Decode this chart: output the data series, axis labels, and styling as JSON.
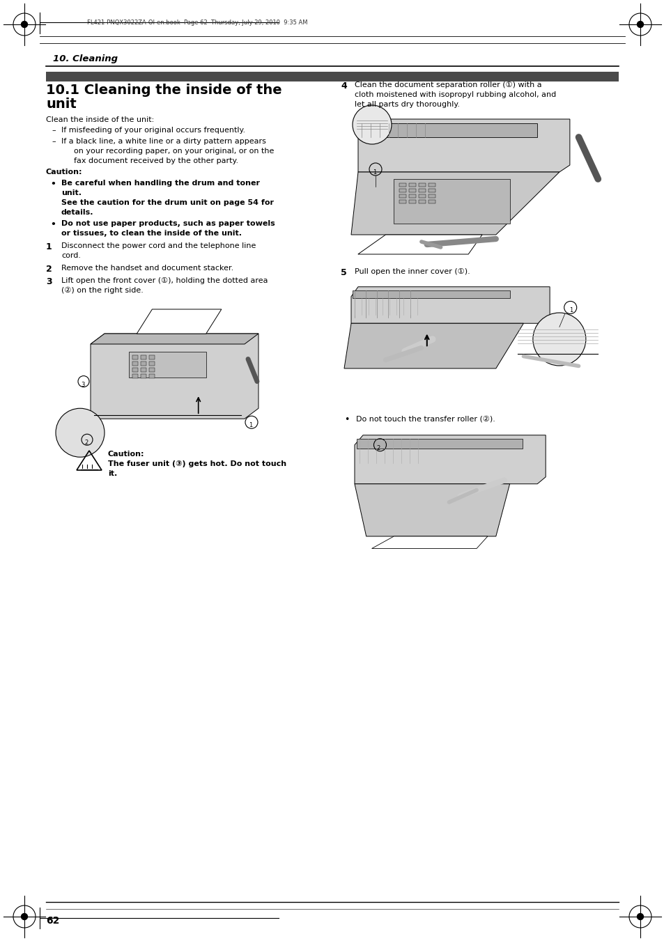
{
  "page_width": 9.54,
  "page_height": 13.51,
  "bg_color": "#ffffff",
  "header_text": "FL421-PNQX3022ZA-OI-en.book  Page 62  Thursday, July 29, 2010  9:35 AM",
  "section_title": "10. Cleaning",
  "subsection_line1": "10.1 Cleaning the inside of the",
  "subsection_line2": "unit",
  "intro_text": "Clean the inside of the unit:",
  "dash1": "If misfeeding of your original occurs frequently.",
  "dash2a": "If a black line, a white line or a dirty pattern appears",
  "dash2b": "on your recording paper, on your original, or on the",
  "dash2c": "fax document received by the other party.",
  "caution_label": "Caution:",
  "cb1a": "Be careful when handling the drum and toner",
  "cb1b": "unit.",
  "cb1c": "See the caution for the drum unit on page 54 for",
  "cb1d": "details.",
  "cb2a": "Do not use paper products, such as paper towels",
  "cb2b": "or tissues, to clean the inside of the unit.",
  "s1a": "Disconnect the power cord and the telephone line",
  "s1b": "cord.",
  "s2": "Remove the handset and document stacker.",
  "s3a": "Lift open the front cover (①), holding the dotted area",
  "s3b": "(②) on the right side.",
  "caut_bot_label": "Caution:",
  "caut_bot_a": "The fuser unit (③) gets hot. Do not touch",
  "caut_bot_b": "it.",
  "s4a": "Clean the document separation roller (①) with a",
  "s4b": "cloth moistened with isopropyl rubbing alcohol, and",
  "s4c": "let all parts dry thoroughly.",
  "s5": "Pull open the inner cover (①).",
  "bullet_right_a": "Do not touch the transfer roller (②).",
  "page_number": "62",
  "dark_bar_color": "#4a4a4a",
  "gray_img": "#e8e8e8",
  "img_border": "#888888"
}
